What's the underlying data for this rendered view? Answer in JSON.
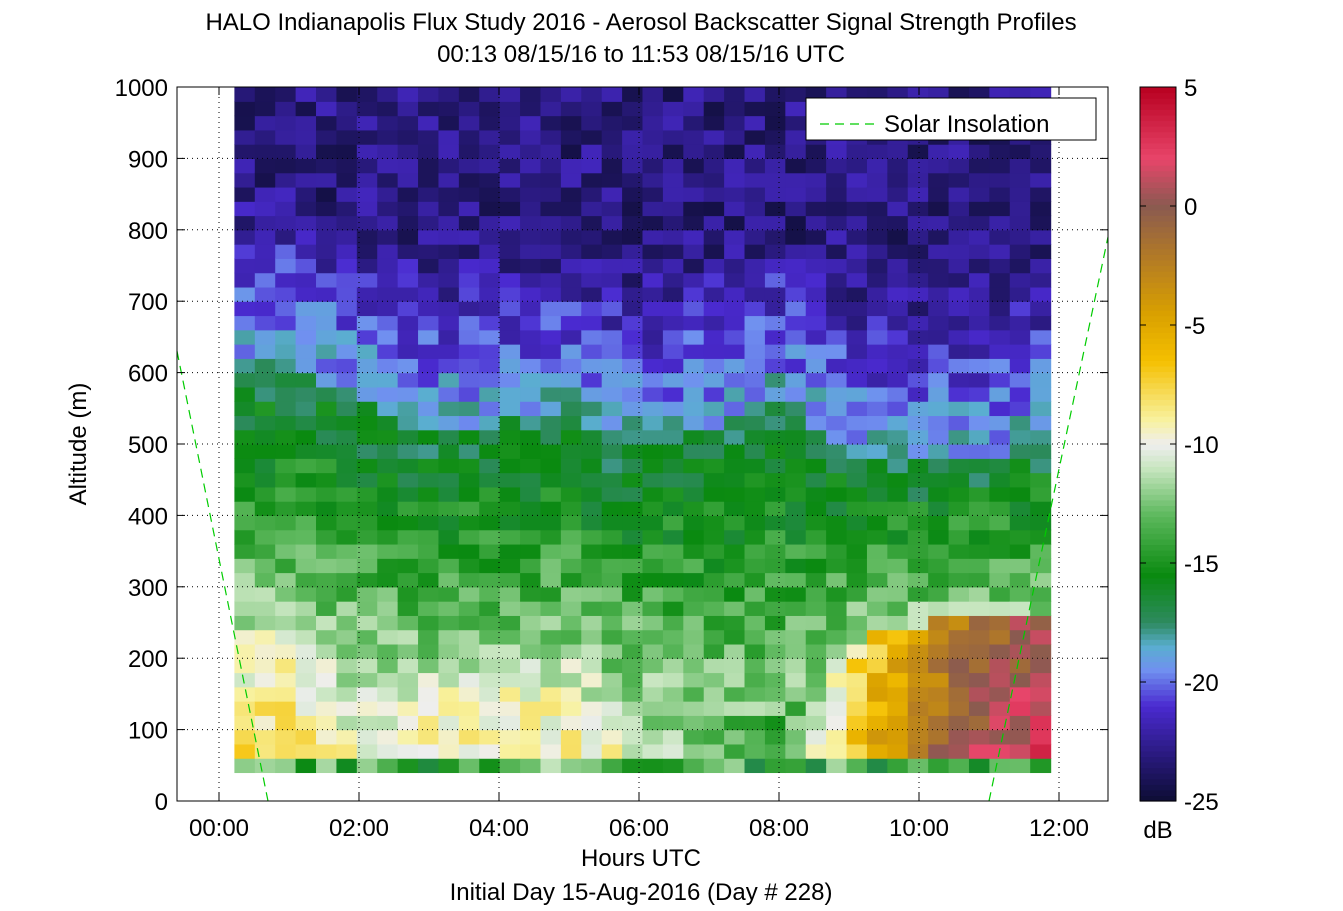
{
  "chart_data": {
    "type": "heatmap",
    "title": "HALO Indianapolis Flux Study 2016 - Aerosol Backscatter Signal Strength Profiles",
    "subtitle": "00:13 08/15/16 to 11:53 08/15/16  UTC",
    "xlabel": "Hours UTC",
    "xlabel2": "Initial Day 15-Aug-2016 (Day # 228)",
    "ylabel": "Altitude (m)",
    "xlim": [
      -0.6,
      12.7
    ],
    "ylim": [
      0,
      1000
    ],
    "x_ticks": [
      {
        "value": 0,
        "label": "00:00"
      },
      {
        "value": 2,
        "label": "02:00"
      },
      {
        "value": 4,
        "label": "04:00"
      },
      {
        "value": 6,
        "label": "06:00"
      },
      {
        "value": 8,
        "label": "08:00"
      },
      {
        "value": 10,
        "label": "10:00"
      },
      {
        "value": 12,
        "label": "12:00"
      }
    ],
    "y_ticks": [
      {
        "value": 0,
        "label": "0"
      },
      {
        "value": 100,
        "label": "100"
      },
      {
        "value": 200,
        "label": "200"
      },
      {
        "value": 300,
        "label": "300"
      },
      {
        "value": 400,
        "label": "400"
      },
      {
        "value": 500,
        "label": "500"
      },
      {
        "value": 600,
        "label": "600"
      },
      {
        "value": 700,
        "label": "700"
      },
      {
        "value": 800,
        "label": "800"
      },
      {
        "value": 900,
        "label": "900"
      },
      {
        "value": 1000,
        "label": "1000"
      }
    ],
    "grid": true,
    "legend": {
      "position": "top-right",
      "entries": [
        {
          "label": "Solar Insolation",
          "color": "#00cc00",
          "style": "dashed"
        }
      ]
    },
    "colorbar": {
      "min": -25,
      "max": 5,
      "unit": "dB",
      "ticks": [
        {
          "value": 5,
          "label": "5"
        },
        {
          "value": 0,
          "label": "0"
        },
        {
          "value": -5,
          "label": "-5"
        },
        {
          "value": -10,
          "label": "-10"
        },
        {
          "value": -15,
          "label": "-15"
        },
        {
          "value": -20,
          "label": "-20"
        },
        {
          "value": -25,
          "label": "-25"
        }
      ],
      "stops": [
        {
          "value": -25,
          "color": "#0d0d33"
        },
        {
          "value": -23,
          "color": "#2a1a80"
        },
        {
          "value": -21,
          "color": "#4a2ad0"
        },
        {
          "value": -19.5,
          "color": "#7090f0"
        },
        {
          "value": -18.5,
          "color": "#5aaed0"
        },
        {
          "value": -17.5,
          "color": "#2e8a60"
        },
        {
          "value": -15.5,
          "color": "#0a8a10"
        },
        {
          "value": -13,
          "color": "#5cb85c"
        },
        {
          "value": -11,
          "color": "#c8e6c0"
        },
        {
          "value": -10,
          "color": "#eeeeee"
        },
        {
          "value": -9,
          "color": "#f8f2a0"
        },
        {
          "value": -6.5,
          "color": "#f5c000"
        },
        {
          "value": -4.5,
          "color": "#d9a000"
        },
        {
          "value": -2,
          "color": "#b07828"
        },
        {
          "value": 0,
          "color": "#8a5a50"
        },
        {
          "value": 2,
          "color": "#e8456a"
        },
        {
          "value": 5,
          "color": "#b80020"
        }
      ]
    },
    "altitude_bins_m": [
      50,
      70,
      90,
      110,
      130,
      150,
      170,
      190,
      210,
      230,
      250,
      270,
      290,
      310,
      330,
      350,
      370,
      390,
      410,
      430,
      450,
      470,
      490,
      510,
      530,
      550,
      570,
      590,
      610,
      630,
      650,
      670,
      690,
      710,
      730,
      750,
      770,
      790,
      810,
      830,
      850,
      870,
      890,
      910,
      930,
      950,
      970,
      990
    ],
    "time_start_h": 0.22,
    "time_end_h": 11.88,
    "columns": 40,
    "profiles": [
      {
        "hour": 0.3,
        "boundary_m": 600,
        "near_surface_dB": -7.5,
        "aerosol_top_m": 250
      },
      {
        "hour": 1.0,
        "boundary_m": 620,
        "near_surface_dB": -7.0,
        "aerosol_top_m": 240
      },
      {
        "hour": 2.0,
        "boundary_m": 560,
        "near_surface_dB": -9.0,
        "aerosol_top_m": 200
      },
      {
        "hour": 3.0,
        "boundary_m": 520,
        "near_surface_dB": -8.0,
        "aerosol_top_m": 180
      },
      {
        "hour": 4.0,
        "boundary_m": 530,
        "near_surface_dB": -7.5,
        "aerosol_top_m": 190
      },
      {
        "hour": 5.0,
        "boundary_m": 540,
        "near_surface_dB": -8.0,
        "aerosol_top_m": 200
      },
      {
        "hour": 6.0,
        "boundary_m": 500,
        "near_surface_dB": -9.0,
        "aerosol_top_m": 160
      },
      {
        "hour": 7.0,
        "boundary_m": 520,
        "near_surface_dB": -11.0,
        "aerosol_top_m": 120
      },
      {
        "hour": 8.0,
        "boundary_m": 560,
        "near_surface_dB": -12.0,
        "aerosol_top_m": 110
      },
      {
        "hour": 9.0,
        "boundary_m": 480,
        "near_surface_dB": -6.0,
        "aerosol_top_m": 220
      },
      {
        "hour": 10.0,
        "boundary_m": 470,
        "near_surface_dB": -1.0,
        "aerosol_top_m": 250
      },
      {
        "hour": 11.0,
        "boundary_m": 480,
        "near_surface_dB": 2.0,
        "aerosol_top_m": 260
      },
      {
        "hour": 11.88,
        "boundary_m": 500,
        "near_surface_dB": 3.0,
        "aerosol_top_m": 270
      }
    ],
    "solar_insolation": [
      {
        "x": -0.6,
        "y": 630
      },
      {
        "x": 0.7,
        "y": 0
      },
      {
        "x": 11.0,
        "y": 0
      },
      {
        "x": 12.7,
        "y": 790
      }
    ]
  }
}
